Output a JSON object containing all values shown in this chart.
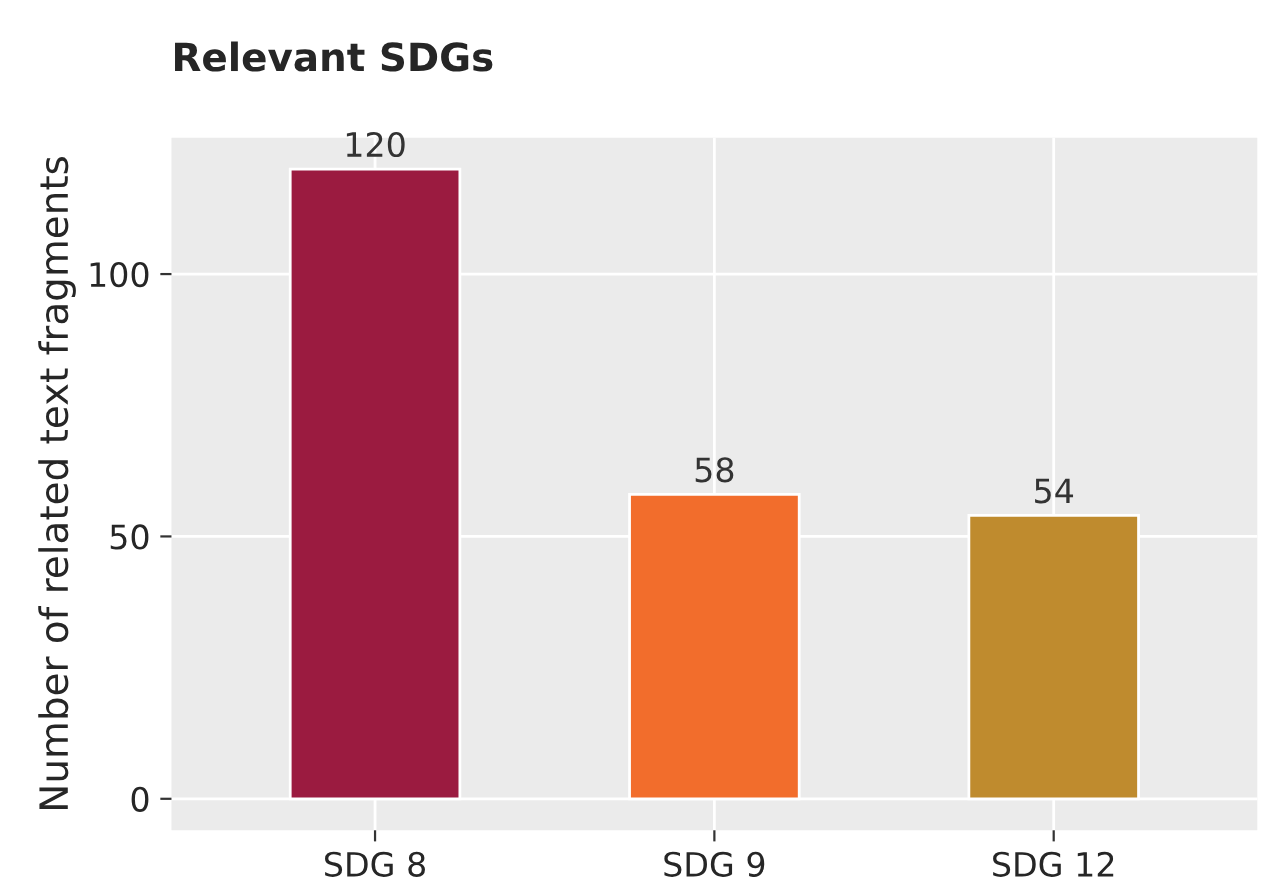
{
  "chart_data": {
    "type": "bar",
    "title": "Relevant SDGs",
    "ylabel": "Number of related text fragments",
    "categories": [
      "SDG 8",
      "SDG 9",
      "SDG 12"
    ],
    "values": [
      120,
      58,
      54
    ],
    "colors": [
      "#9b1b40",
      "#f26d2c",
      "#bf8b2e"
    ],
    "ylim": [
      -6,
      126
    ],
    "yticks": [
      0,
      50,
      100
    ],
    "grid": true,
    "data_labels": true
  }
}
